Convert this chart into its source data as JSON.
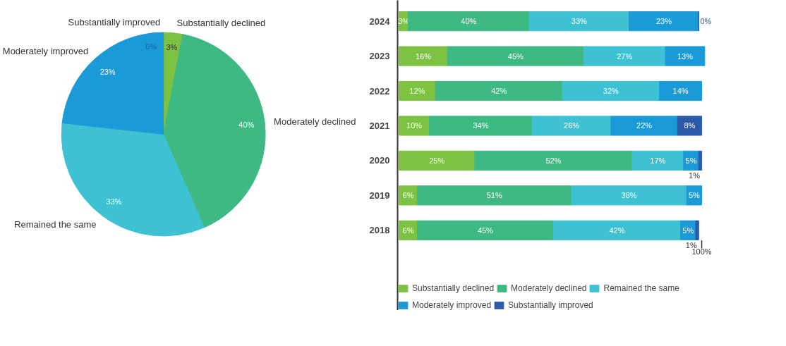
{
  "chart_data": [
    {
      "type": "pie",
      "categories": [
        "Substantially declined",
        "Moderately declined",
        "Remained the same",
        "Moderately improved",
        "Substantially improved"
      ],
      "values": [
        3,
        40,
        33,
        23,
        0
      ],
      "colors": [
        "#7dc242",
        "#3fb983",
        "#3ec1d3",
        "#1a9ad6",
        "#2b5ba8"
      ],
      "value_labels": [
        "3%",
        "40%",
        "33%",
        "23%",
        "0%"
      ],
      "legend": false
    },
    {
      "type": "bar",
      "orientation": "horizontal",
      "stacked": true,
      "categories": [
        "2024",
        "2023",
        "2022",
        "2021",
        "2020",
        "2019",
        "2018"
      ],
      "tick_labels": "y",
      "legend": "bottom",
      "annotations": [
        {
          "text": "100%",
          "x": 100,
          "y": "2018"
        }
      ],
      "series": [
        {
          "name": "Substantially declined",
          "color": "#7dc242",
          "values": [
            3,
            16,
            12,
            10,
            25,
            6,
            6
          ],
          "value_labels": [
            "3%",
            "16%",
            "12%",
            "10%",
            "25%",
            "6%",
            "6%"
          ]
        },
        {
          "name": "Moderately declined",
          "color": "#3fb983",
          "values": [
            40,
            45,
            42,
            34,
            52,
            51,
            45
          ],
          "value_labels": [
            "40%",
            "45%",
            "42%",
            "34%",
            "52%",
            "51%",
            "45%"
          ]
        },
        {
          "name": "Remained the same",
          "color": "#3ec1d3",
          "values": [
            33,
            27,
            32,
            26,
            17,
            38,
            42
          ],
          "value_labels": [
            "33%",
            "27%",
            "32%",
            "26%",
            "17%",
            "38%",
            "42%"
          ]
        },
        {
          "name": "Moderately improved",
          "color": "#1a9ad6",
          "values": [
            23,
            13,
            14,
            22,
            5,
            5,
            5
          ],
          "value_labels": [
            "23%",
            "13%",
            "14%",
            "22%",
            "5%",
            "5%",
            "5%"
          ]
        },
        {
          "name": "Substantially improved",
          "color": "#2b5ba8",
          "values": [
            0,
            null,
            null,
            8,
            1,
            null,
            1
          ],
          "value_labels": [
            "0%",
            null,
            null,
            "8%",
            "1%",
            null,
            "1%"
          ]
        }
      ]
    }
  ]
}
